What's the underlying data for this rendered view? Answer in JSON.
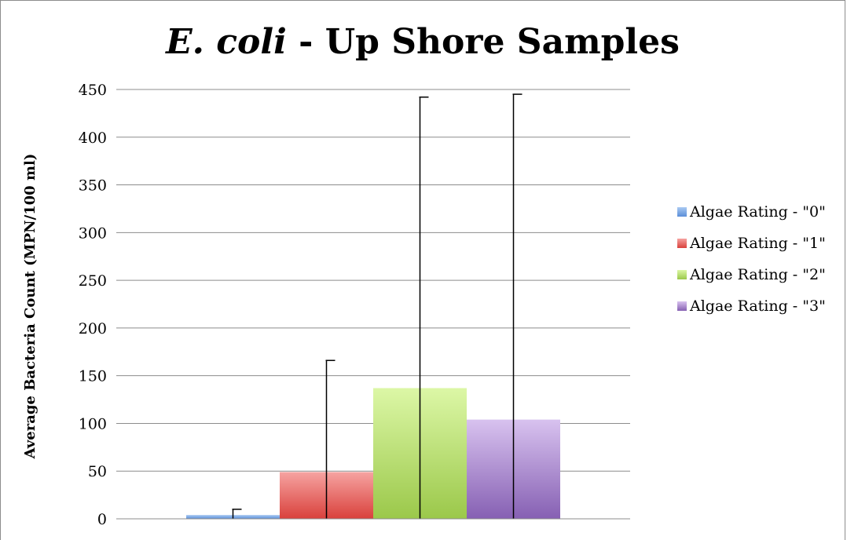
{
  "chart_data": {
    "type": "bar",
    "title_italic": "E. coli",
    "title_rest": " - Up Shore Samples",
    "ylabel": "Average Bacteria Count (MPN/100 ml)",
    "ylim": [
      0,
      450
    ],
    "yticks": [
      "0",
      "50",
      "100",
      "150",
      "200",
      "250",
      "300",
      "350",
      "400",
      "450"
    ],
    "grid": true,
    "legend_position": "right",
    "series": [
      {
        "name": "Algae Rating - \"0\"",
        "value": 4,
        "error_upper": 10,
        "color_top": "#a9c9f2",
        "color_bottom": "#5b8fd9"
      },
      {
        "name": "Algae Rating - \"1\"",
        "value": 49,
        "error_upper": 166,
        "color_top": "#f6a3a1",
        "color_bottom": "#d9413c"
      },
      {
        "name": "Algae Rating - \"2\"",
        "value": 137,
        "error_upper": 442,
        "color_top": "#dcf7a6",
        "color_bottom": "#9bc84a"
      },
      {
        "name": "Algae Rating - \"3\"",
        "value": 104,
        "error_upper": 445,
        "color_top": "#d8c2ef",
        "color_bottom": "#8660b3"
      }
    ]
  }
}
